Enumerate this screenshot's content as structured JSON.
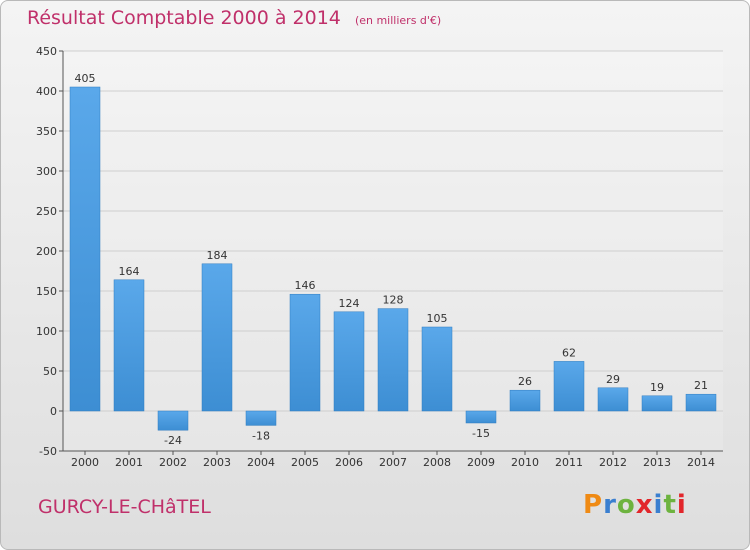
{
  "header": {
    "title": "Résultat Comptable 2000 à 2014",
    "subtitle": "(en milliers d'€)"
  },
  "footer": {
    "commune": "GURCY-LE-CHâTEL",
    "logo": "Proxiti"
  },
  "colors": {
    "title": "#c0306a",
    "bar": "#3d8ed3",
    "grid": "#cfcfcf",
    "logo_letters": [
      "#ef8a14",
      "#3a7fd0",
      "#6db33f",
      "#e2262b",
      "#3a7fd0",
      "#6db33f",
      "#e2262b"
    ]
  },
  "chart_data": {
    "type": "bar",
    "categories": [
      "2000",
      "2001",
      "2002",
      "2003",
      "2004",
      "2005",
      "2006",
      "2007",
      "2008",
      "2009",
      "2010",
      "2011",
      "2012",
      "2013",
      "2014"
    ],
    "values": [
      405,
      164,
      -24,
      184,
      -18,
      146,
      124,
      128,
      105,
      -15,
      26,
      62,
      29,
      19,
      21
    ],
    "ylim": [
      -50,
      450
    ],
    "yticks": [
      -50,
      0,
      50,
      100,
      150,
      200,
      250,
      300,
      350,
      400,
      450
    ],
    "grid": true,
    "legend": "none"
  }
}
